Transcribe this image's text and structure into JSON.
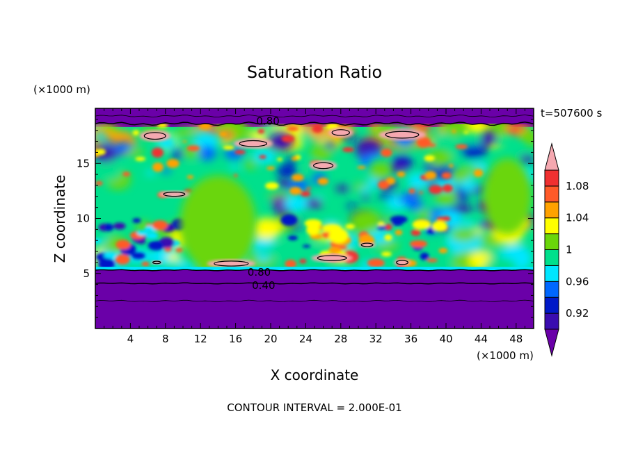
{
  "chart_data": {
    "type": "heatmap",
    "title": "Saturation Ratio",
    "xlabel": "X coordinate",
    "ylabel": "Z coordinate",
    "x_unit": "(×1000 m)",
    "y_unit": "(×1000 m)",
    "time_label": "t=507600 s",
    "footer": "CONTOUR INTERVAL = 2.000E-01",
    "xlim": [
      0,
      50
    ],
    "ylim": [
      0,
      20
    ],
    "x_ticks": [
      4,
      8,
      12,
      16,
      20,
      24,
      28,
      32,
      36,
      40,
      44,
      48
    ],
    "y_ticks": [
      5,
      10,
      15
    ],
    "colorbar": {
      "levels": [
        0.9,
        0.92,
        0.94,
        0.96,
        0.98,
        1.0,
        1.02,
        1.04,
        1.06,
        1.08,
        1.1
      ],
      "tick_labels": [
        {
          "value": 0.92,
          "label": "0.92"
        },
        {
          "value": 0.96,
          "label": "0.96"
        },
        {
          "value": 1.0,
          "label": "1"
        },
        {
          "value": 1.04,
          "label": "1.04"
        },
        {
          "value": 1.08,
          "label": "1.08"
        }
      ],
      "colors": [
        "#6a00a8",
        "#3a0cb0",
        "#0019c8",
        "#0067ff",
        "#00e6ff",
        "#00e08c",
        "#6ad60a",
        "#ffff00",
        "#ffa200",
        "#ff5a28",
        "#f03030",
        "#f5a8b0"
      ]
    },
    "contour_labels": [
      {
        "text": "0.80",
        "x": 18.5,
        "z": 18.7
      },
      {
        "text": "0.80",
        "x": 17.5,
        "z": 5.0
      },
      {
        "text": "0.40",
        "x": 18.0,
        "z": 3.8
      }
    ],
    "regions": [
      {
        "zmin": 0,
        "zmax": 5.3,
        "value": 0.5
      },
      {
        "zmin": 18.3,
        "zmax": 20,
        "value": 0.7
      },
      {
        "zmin": 5.3,
        "zmax": 18.3,
        "value": 1.0
      }
    ]
  }
}
